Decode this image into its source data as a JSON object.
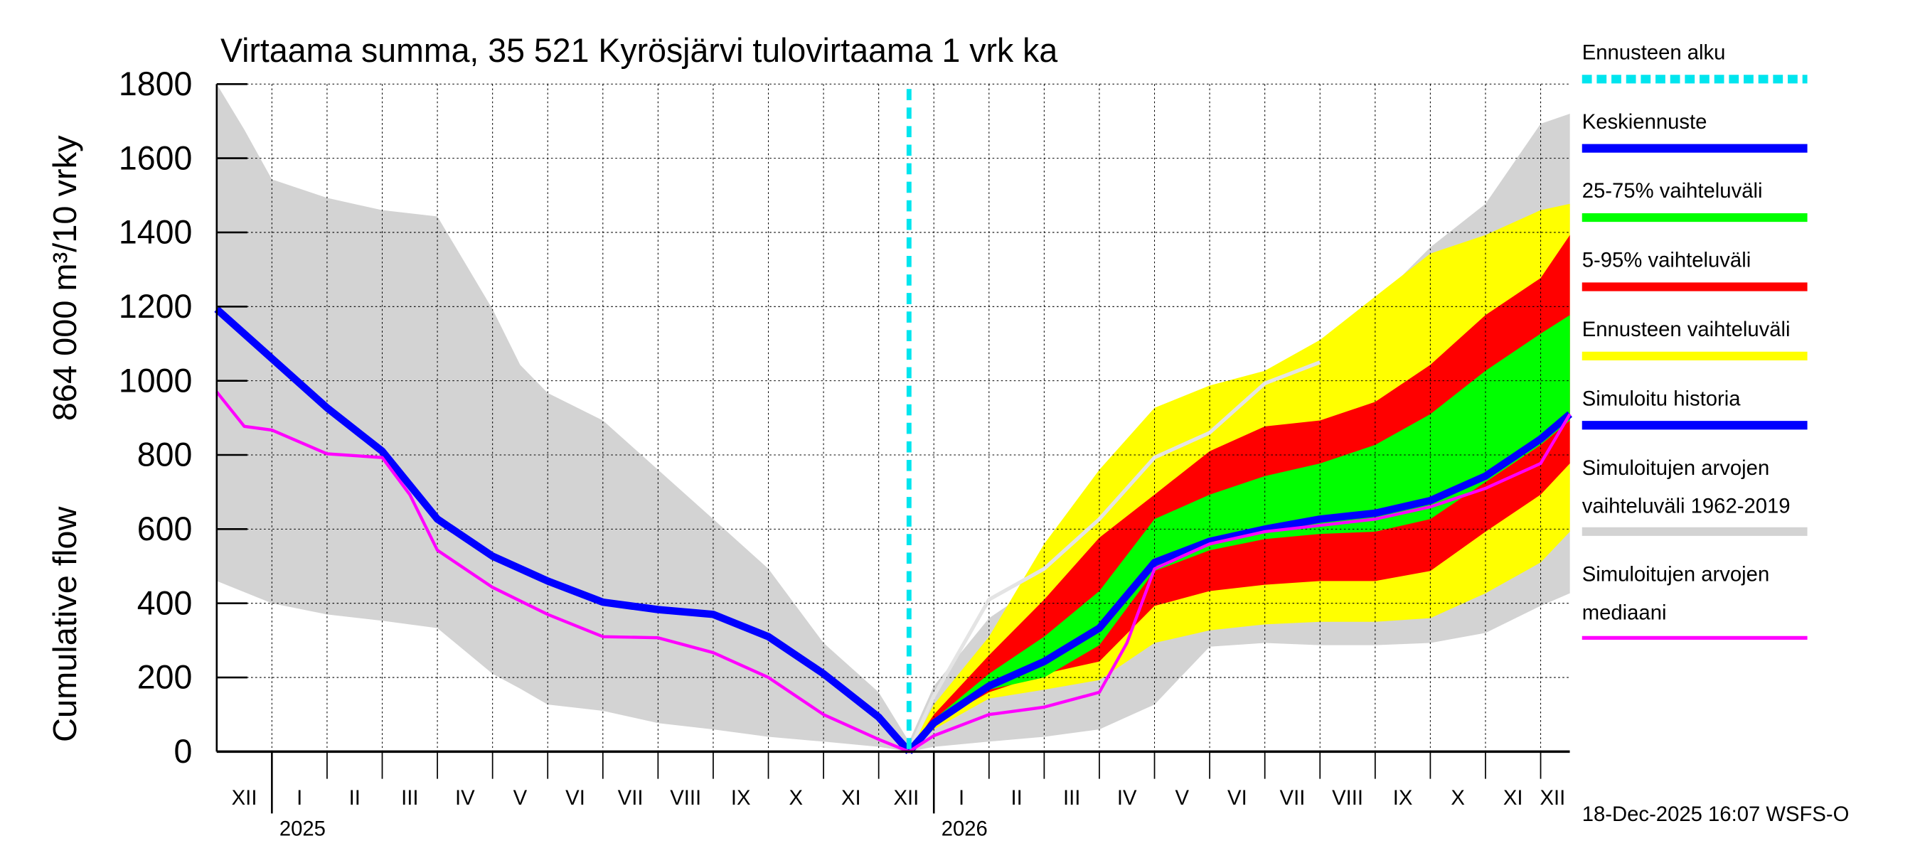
{
  "chart_data": {
    "type": "area",
    "title": "Virtaama summa, 35 521 Kyrösjärvi tulovirtaama 1 vrk ka",
    "ylabel_fi": "864 000 m³/10 vrky",
    "ylabel_en": "Cumulative flow",
    "ylim": [
      0,
      1800
    ],
    "yticks": [
      "0",
      "200",
      "400",
      "600",
      "800",
      "1000",
      "1200",
      "1400",
      "1600",
      "1800"
    ],
    "ytick_values": [
      0,
      200,
      400,
      600,
      800,
      1000,
      1200,
      1400,
      1600,
      1800
    ],
    "x_unit": "months since 2024-12-01",
    "xlim": [
      0,
      24.53
    ],
    "forecast_start": 12.55,
    "month_labels": [
      "XII",
      "I",
      "II",
      "III",
      "IV",
      "V",
      "VI",
      "VII",
      "VIII",
      "IX",
      "X",
      "XI",
      "XII",
      "I",
      "II",
      "III",
      "IV",
      "V",
      "VI",
      "VII",
      "VIII",
      "IX",
      "X",
      "XI",
      "XII"
    ],
    "year_labels": [
      {
        "label": "2025",
        "month": 1
      },
      {
        "label": "2026",
        "month": 13
      }
    ],
    "timestamp": "18-Dec-2025 16:07 WSFS-O",
    "grid": true,
    "legend_placement": "right",
    "legend": [
      {
        "label": "Ennusteen alku",
        "color": "#00e5ee",
        "style": "dashed"
      },
      {
        "label": "Keskiennuste",
        "color": "#0000ff"
      },
      {
        "label": "25-75% vaihteluväli",
        "color": "#00ff00"
      },
      {
        "label": "5-95% vaihteluväli",
        "color": "#ff0000"
      },
      {
        "label": "Ennusteen vaihteluväli",
        "color": "#ffff00"
      },
      {
        "label": "Simuloitu historia",
        "color": "#0000ff"
      },
      {
        "label": "Simuloitujen arvojen",
        "label2": "vaihteluväli 1962-2019",
        "color": "#d3d3d3"
      },
      {
        "label": "Simuloitujen arvojen",
        "label2": "mediaani",
        "color": "#ff00ff"
      }
    ],
    "bands": [
      {
        "name": "Simuloitujen arvojen vaihteluväli 1962-2019",
        "color": "#d3d3d3",
        "x": [
          0,
          0.5,
          1,
          2,
          3,
          4,
          5,
          5.5,
          6,
          7,
          8,
          9,
          10,
          11,
          12,
          12.55,
          13,
          14,
          15,
          16,
          17,
          18,
          19,
          20,
          21,
          22,
          23,
          24,
          24.53
        ],
        "upper": [
          1800,
          1677,
          1543,
          1493,
          1460,
          1443,
          1193,
          1043,
          967,
          893,
          760,
          627,
          493,
          293,
          160,
          27,
          177,
          360,
          460,
          593,
          760,
          860,
          993,
          1077,
          1210,
          1360,
          1477,
          1693,
          1720
        ],
        "lower": [
          460,
          430,
          400,
          370,
          353,
          333,
          210,
          170,
          127,
          110,
          77,
          60,
          40,
          27,
          13,
          0,
          13,
          27,
          40,
          60,
          127,
          283,
          293,
          287,
          287,
          293,
          320,
          393,
          427
        ]
      },
      {
        "name": "Ennusteen vaihteluväli",
        "color": "#ffff00",
        "x": [
          12.55,
          13,
          14,
          15,
          16,
          17,
          18,
          19,
          20,
          21,
          22,
          23,
          24,
          24.53
        ],
        "upper": [
          0,
          127,
          310,
          560,
          760,
          927,
          987,
          1027,
          1110,
          1227,
          1343,
          1393,
          1460,
          1477
        ],
        "lower": [
          0,
          60,
          143,
          167,
          193,
          293,
          327,
          343,
          350,
          350,
          360,
          427,
          510,
          593
        ]
      },
      {
        "name": "5-95% vaihteluväli",
        "color": "#ff0000",
        "x": [
          12.55,
          13,
          14,
          15,
          16,
          17,
          18,
          19,
          20,
          21,
          22,
          23,
          24,
          24.53
        ],
        "upper": [
          0,
          100,
          260,
          410,
          577,
          693,
          810,
          877,
          893,
          943,
          1043,
          1177,
          1277,
          1393
        ],
        "lower": [
          0,
          77,
          160,
          210,
          243,
          393,
          433,
          450,
          460,
          460,
          487,
          593,
          693,
          777
        ]
      },
      {
        "name": "25-75% vaihteluväli",
        "color": "#00ff00",
        "x": [
          12.55,
          13,
          14,
          15,
          16,
          17,
          18,
          19,
          20,
          21,
          22,
          23,
          24,
          24.53
        ],
        "upper": [
          0,
          87,
          210,
          310,
          433,
          627,
          693,
          743,
          777,
          827,
          910,
          1027,
          1127,
          1177
        ],
        "lower": [
          0,
          67,
          167,
          200,
          287,
          487,
          543,
          573,
          587,
          593,
          627,
          727,
          827,
          893
        ]
      }
    ],
    "series": [
      {
        "name": "Simuloitujen arvojen yläraja (ennuste)",
        "color": "#e4e4e4",
        "width": 3,
        "x": [
          12.55,
          13,
          14,
          15,
          16,
          17,
          18,
          19,
          20
        ],
        "values": [
          0,
          150,
          410,
          493,
          627,
          793,
          860,
          993,
          1050
        ]
      },
      {
        "name": "Simuloitu historia",
        "color": "#0000ff",
        "width": 6,
        "x": [
          0,
          1,
          2,
          3,
          4,
          5,
          6,
          7,
          8,
          9,
          10,
          11,
          12,
          12.55
        ],
        "values": [
          1193,
          1060,
          927,
          810,
          627,
          527,
          460,
          403,
          383,
          370,
          310,
          210,
          93,
          0
        ]
      },
      {
        "name": "Keskiennuste",
        "color": "#0000ff",
        "width": 6,
        "x": [
          12.55,
          13,
          14,
          15,
          16,
          17,
          18,
          19,
          20,
          21,
          22,
          23,
          24,
          24.53
        ],
        "values": [
          0,
          77,
          177,
          243,
          333,
          510,
          567,
          600,
          627,
          643,
          677,
          743,
          843,
          910
        ]
      },
      {
        "name": "Simuloitujen arvojen mediaani",
        "color": "#ff00ff",
        "width": 2.5,
        "x": [
          0,
          0.5,
          1,
          2,
          3,
          3.5,
          4,
          5,
          6,
          7,
          8,
          9,
          10,
          11,
          12,
          12.55,
          13,
          14,
          15,
          16,
          16.5,
          17,
          18,
          19,
          20,
          21,
          22,
          23,
          24,
          24.53
        ],
        "values": [
          970,
          877,
          867,
          803,
          793,
          693,
          543,
          443,
          370,
          310,
          307,
          267,
          200,
          100,
          33,
          0,
          43,
          100,
          120,
          160,
          293,
          493,
          560,
          593,
          610,
          627,
          660,
          710,
          777,
          910
        ]
      }
    ]
  }
}
